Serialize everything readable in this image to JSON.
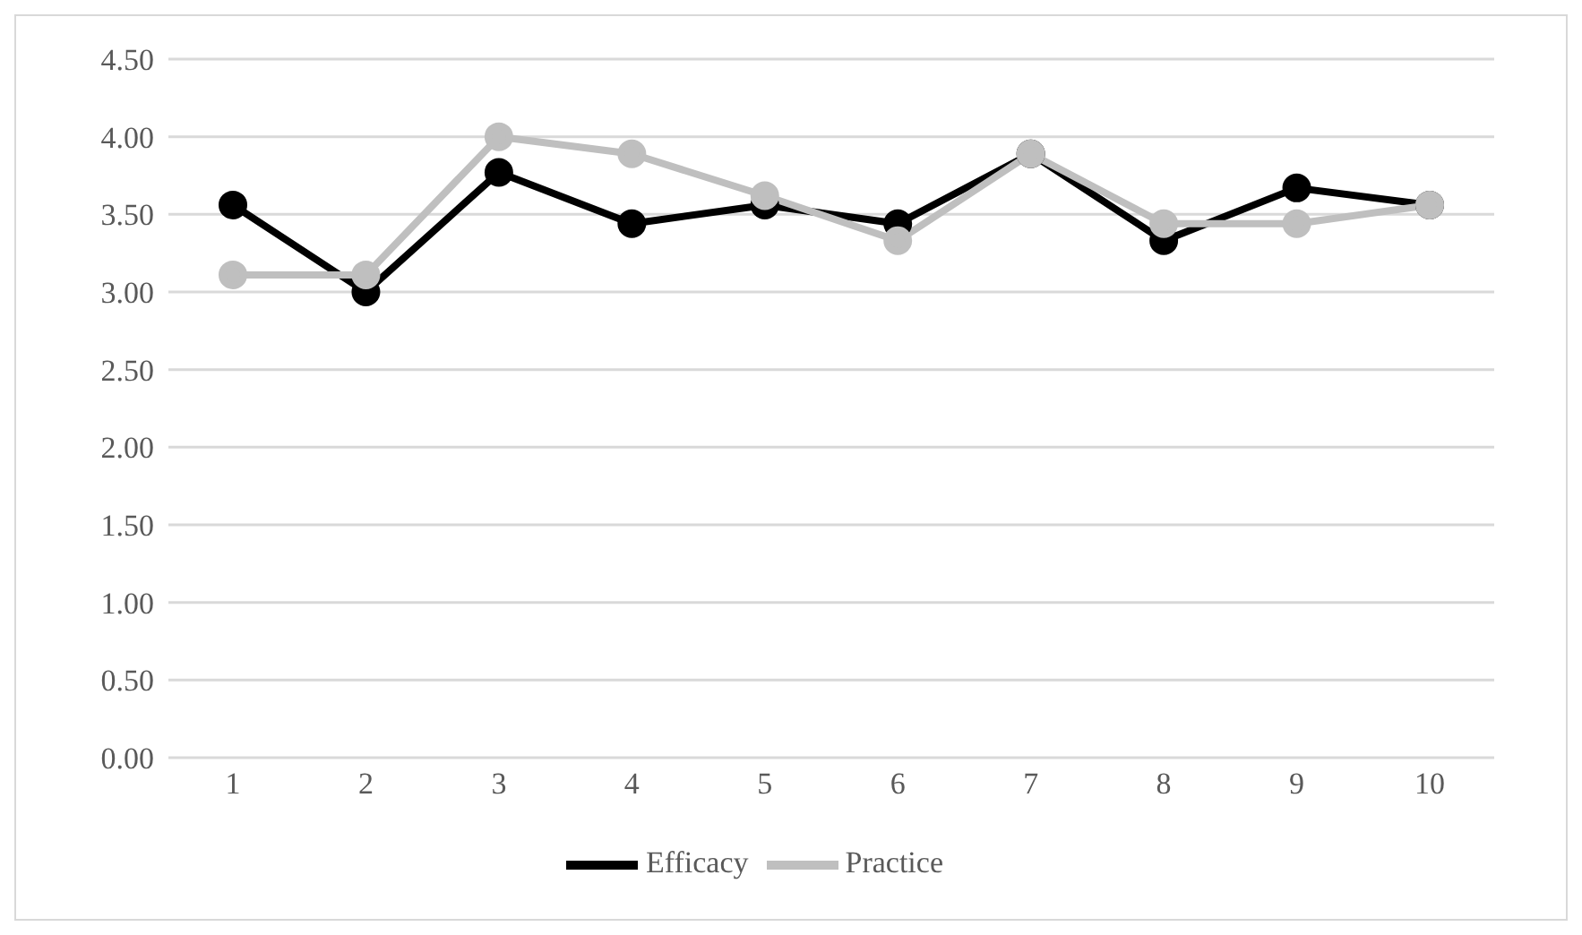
{
  "chart_data": {
    "type": "line",
    "categories": [
      "1",
      "2",
      "3",
      "4",
      "5",
      "6",
      "7",
      "8",
      "9",
      "10"
    ],
    "series": [
      {
        "name": "Efficacy",
        "color": "#000000",
        "values": [
          3.56,
          3.0,
          3.77,
          3.44,
          3.56,
          3.44,
          3.89,
          3.33,
          3.67,
          3.56
        ]
      },
      {
        "name": "Practice",
        "color": "#bfbfbf",
        "values": [
          3.11,
          3.11,
          4.0,
          3.89,
          3.62,
          3.33,
          3.89,
          3.44,
          3.44,
          3.56
        ]
      }
    ],
    "ylim": [
      0,
      4.5
    ],
    "yticks": [
      {
        "value": 0,
        "label": "0.00"
      },
      {
        "value": 0.5,
        "label": "0.50"
      },
      {
        "value": 1,
        "label": "1.00"
      },
      {
        "value": 1.5,
        "label": "1.50"
      },
      {
        "value": 2,
        "label": "2.00"
      },
      {
        "value": 2.5,
        "label": "2.50"
      },
      {
        "value": 3,
        "label": "3.00"
      },
      {
        "value": 3.5,
        "label": "3.50"
      },
      {
        "value": 4,
        "label": "4.00"
      },
      {
        "value": 4.5,
        "label": "4.50"
      }
    ],
    "grid": "y",
    "legend": "bottom",
    "marker": "circle",
    "line_style": "solid"
  }
}
